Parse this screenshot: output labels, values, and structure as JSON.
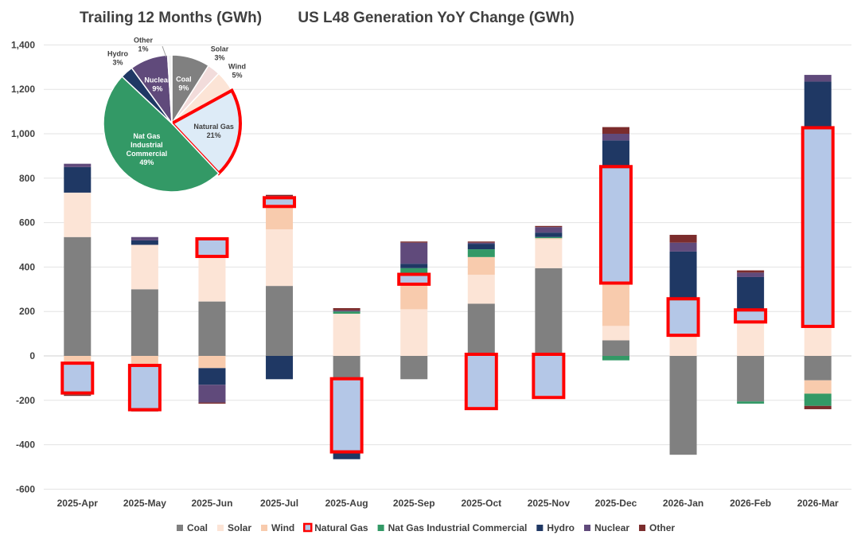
{
  "chart_data": [
    {
      "type": "pie",
      "title": "Trailing 12 Months (GWh)",
      "slices": [
        {
          "label": "Coal",
          "value": 9,
          "pct_label": "9%",
          "color": "#808080",
          "highlighted": false
        },
        {
          "label": "Solar",
          "value": 3,
          "pct_label": "3%",
          "color": "#F2DCDB",
          "highlighted": false
        },
        {
          "label": "Wind",
          "value": 5,
          "pct_label": "5%",
          "color": "#FCE4D6",
          "highlighted": false
        },
        {
          "label": "Natural Gas",
          "value": 21,
          "pct_label": "21%",
          "color": "#DDEBF7",
          "highlighted": true
        },
        {
          "label": "Nat Gas Industrial Commercial",
          "display_lines": [
            "Nat Gas",
            "Industrial",
            "Commercial"
          ],
          "value": 49,
          "pct_label": "49%",
          "color": "#339966",
          "highlighted": false
        },
        {
          "label": "Hydro",
          "value": 3,
          "pct_label": "3%",
          "color": "#1F3864",
          "highlighted": false
        },
        {
          "label": "Nuclear",
          "value": 9,
          "pct_label": "9%",
          "color": "#604A7B",
          "highlighted": false
        },
        {
          "label": "Other",
          "value": 1,
          "pct_label": "1%",
          "color": "#F2F2F2",
          "highlighted": false
        }
      ]
    },
    {
      "type": "bar",
      "stacked": true,
      "title": "US L48 Generation YoY Change (GWh)",
      "categories": [
        "2025-Apr",
        "2025-May",
        "2025-Jun",
        "2025-Jul",
        "2025-Aug",
        "2025-Sep",
        "2025-Oct",
        "2025-Nov",
        "2025-Dec",
        "2026-Jan",
        "2026-Feb",
        "2026-Mar"
      ],
      "ylim": [
        -600,
        1400
      ],
      "yticks": [
        -600,
        -400,
        -200,
        0,
        200,
        400,
        600,
        800,
        1000,
        1200,
        1400
      ],
      "grid": true,
      "legend_position": "bottom",
      "series": [
        {
          "name": "Coal",
          "color": "#808080",
          "values": [
            535,
            300,
            245,
            315,
            -100,
            -105,
            235,
            395,
            70,
            -445,
            -205,
            -110
          ]
        },
        {
          "name": "Solar",
          "color": "#FCE4D6",
          "values": [
            200,
            200,
            210,
            255,
            190,
            210,
            130,
            130,
            65,
            85,
            150,
            140
          ]
        },
        {
          "name": "Wind",
          "color": "#F8CBAD",
          "values": [
            -40,
            -50,
            -55,
            110,
            -10,
            120,
            80,
            5,
            200,
            15,
            10,
            -60
          ]
        },
        {
          "name": "Natural Gas",
          "color": "#B4C7E7",
          "highlight": true,
          "values": [
            -120,
            -185,
            65,
            25,
            -315,
            30,
            -230,
            -180,
            510,
            150,
            40,
            880
          ]
        },
        {
          "name": "Nat Gas Industrial Commercial",
          "color": "#339966",
          "values": [
            -15,
            -10,
            5,
            5,
            10,
            35,
            35,
            5,
            -20,
            5,
            -10,
            -55
          ]
        },
        {
          "name": "Hydro",
          "color": "#1F3864",
          "values": [
            115,
            20,
            -75,
            -105,
            -40,
            20,
            25,
            20,
            125,
            215,
            155,
            215
          ]
        },
        {
          "name": "Nuclear",
          "color": "#604A7B",
          "values": [
            15,
            15,
            -80,
            10,
            5,
            95,
            5,
            25,
            30,
            40,
            20,
            30
          ]
        },
        {
          "name": "Other",
          "color": "#7B2C2C",
          "values": [
            -5,
            -5,
            -5,
            5,
            10,
            5,
            5,
            5,
            30,
            35,
            10,
            -15
          ]
        }
      ]
    }
  ]
}
